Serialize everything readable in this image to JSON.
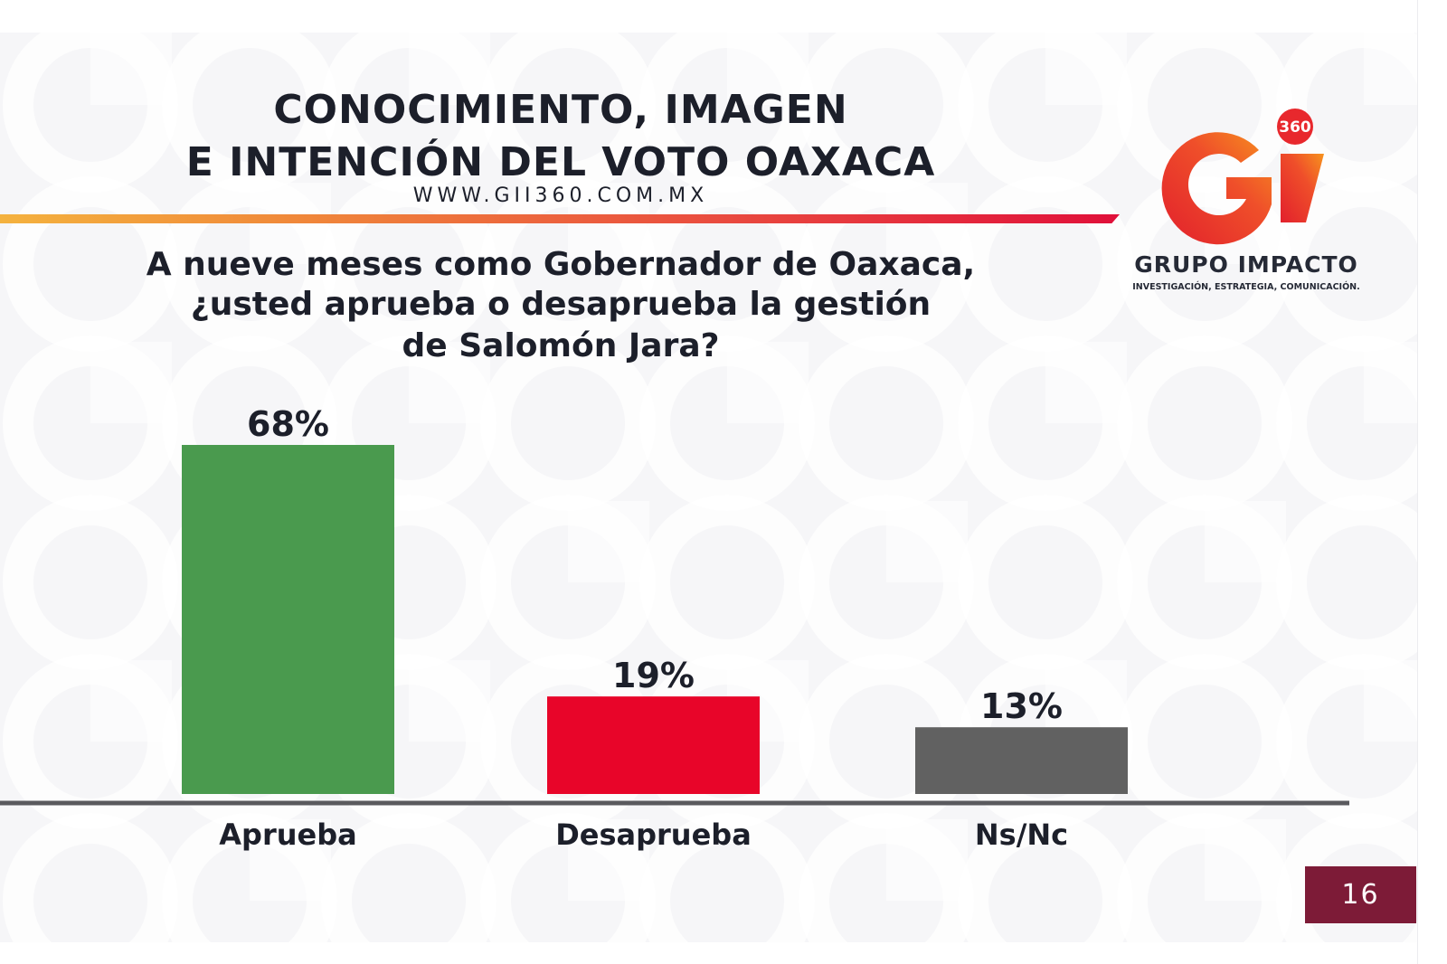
{
  "header": {
    "title_line_1": "CONOCIMIENTO, IMAGEN",
    "title_line_2": "E INTENCIÓN DEL VOTO OAXACA",
    "website": "WWW.GII360.COM.MX"
  },
  "question": {
    "line_1": "A nueve meses como Gobernador de Oaxaca,",
    "line_2": "¿usted aprueba o desaprueba la gestión",
    "line_3": "de Salomón Jara?"
  },
  "logo": {
    "badge": "360",
    "name": "GRUPO IMPACTO",
    "tagline": "INVESTIGACIÓN, ESTRATEGIA, COMUNICACIÓN."
  },
  "page_number": "16",
  "colors": {
    "background": "#f6f6f8",
    "title_text": "#1c1f2a",
    "page_badge": "#7d1b37",
    "axis": "#5a5a5e"
  },
  "chart_data": {
    "type": "bar",
    "categories": [
      "Aprueba",
      "Desaprueba",
      "Ns/Nc"
    ],
    "values": [
      68,
      19,
      13
    ],
    "value_labels": [
      "68%",
      "19%",
      "13%"
    ],
    "colors": [
      "#4a9a4e",
      "#e80529",
      "#616161"
    ],
    "unit": "%",
    "ylim": [
      0,
      68
    ],
    "grid": false,
    "legend": "none"
  }
}
